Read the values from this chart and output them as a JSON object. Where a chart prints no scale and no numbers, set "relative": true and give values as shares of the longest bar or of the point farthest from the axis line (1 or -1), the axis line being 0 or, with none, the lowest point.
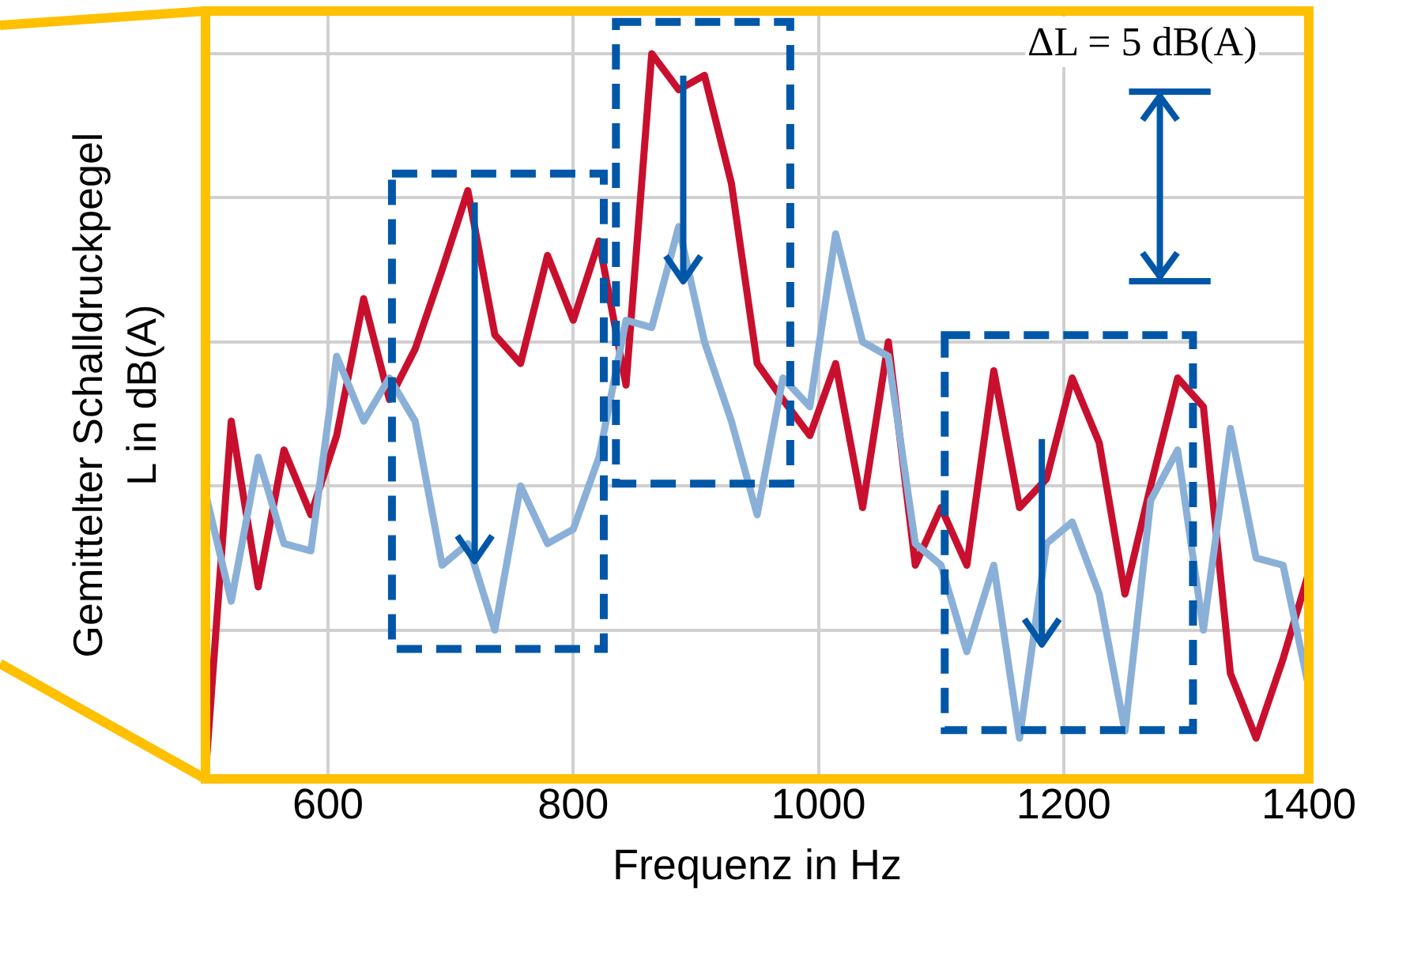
{
  "chart_data": {
    "type": "line",
    "relative": true,
    "xlabel": "Frequenz in Hz",
    "ylabel": "Gemittelter Schalldruckpegel\nL in dB(A)",
    "x": [
      500,
      521,
      543,
      564,
      586,
      607,
      629,
      650,
      671,
      693,
      714,
      736,
      757,
      779,
      800,
      821,
      843,
      864,
      886,
      907,
      929,
      950,
      971,
      993,
      1014,
      1036,
      1057,
      1079,
      1100,
      1121,
      1143,
      1164,
      1186,
      1207,
      1229,
      1250,
      1271,
      1293,
      1314,
      1336,
      1357,
      1379,
      1400
    ],
    "xlim": [
      500,
      1400
    ],
    "xticks": [
      600,
      800,
      1000,
      1200,
      1400
    ],
    "series": [
      {
        "color": "#c8102e",
        "values": [
          0.0,
          0.49,
          0.26,
          0.45,
          0.36,
          0.47,
          0.66,
          0.52,
          0.59,
          0.7,
          0.81,
          0.61,
          0.57,
          0.72,
          0.63,
          0.74,
          0.54,
          1.0,
          0.95,
          0.97,
          0.82,
          0.57,
          0.52,
          0.47,
          0.57,
          0.37,
          0.6,
          0.29,
          0.37,
          0.29,
          0.56,
          0.37,
          0.41,
          0.55,
          0.46,
          0.25,
          0.4,
          0.55,
          0.51,
          0.14,
          0.05,
          0.16,
          0.28
        ]
      },
      {
        "color": "#8ab0d8",
        "values": [
          0.39,
          0.24,
          0.44,
          0.32,
          0.31,
          0.58,
          0.49,
          0.55,
          0.49,
          0.29,
          0.32,
          0.2,
          0.4,
          0.32,
          0.34,
          0.44,
          0.63,
          0.62,
          0.76,
          0.6,
          0.49,
          0.36,
          0.55,
          0.51,
          0.75,
          0.6,
          0.58,
          0.32,
          0.29,
          0.17,
          0.29,
          0.05,
          0.32,
          0.35,
          0.25,
          0.06,
          0.38,
          0.45,
          0.2,
          0.48,
          0.3,
          0.29,
          0.12
        ]
      }
    ],
    "annotations": [
      "ΔL = 5 dB(A)"
    ],
    "grid": true,
    "line_style": "solid",
    "marker": "none"
  }
}
